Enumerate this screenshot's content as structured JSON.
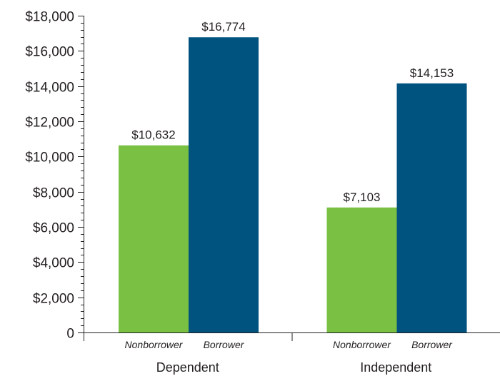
{
  "chart_data": {
    "type": "bar",
    "title": "",
    "xlabel": "",
    "ylabel": "",
    "ylim": [
      0,
      18000
    ],
    "ytick_values": [
      0,
      2000,
      4000,
      6000,
      8000,
      10000,
      12000,
      14000,
      16000,
      18000
    ],
    "ytick_labels": [
      "0",
      "$2,000",
      "$4,000",
      "$6,000",
      "$8,000",
      "$10,000",
      "$12,000",
      "$14,000",
      "$16,000",
      "$18,000"
    ],
    "categories": [
      "Dependent",
      "Independent"
    ],
    "bar_labels": [
      "Nonborrower",
      "Borrower"
    ],
    "series": [
      {
        "values": [
          10632,
          7103
        ],
        "labels": [
          "$10,632",
          "$7,103"
        ],
        "color": "#7ac143"
      },
      {
        "values": [
          16774,
          14153
        ],
        "labels": [
          "$16,774",
          "$14,153"
        ],
        "color": "#00527f"
      }
    ],
    "grid": false,
    "legend": "none"
  }
}
